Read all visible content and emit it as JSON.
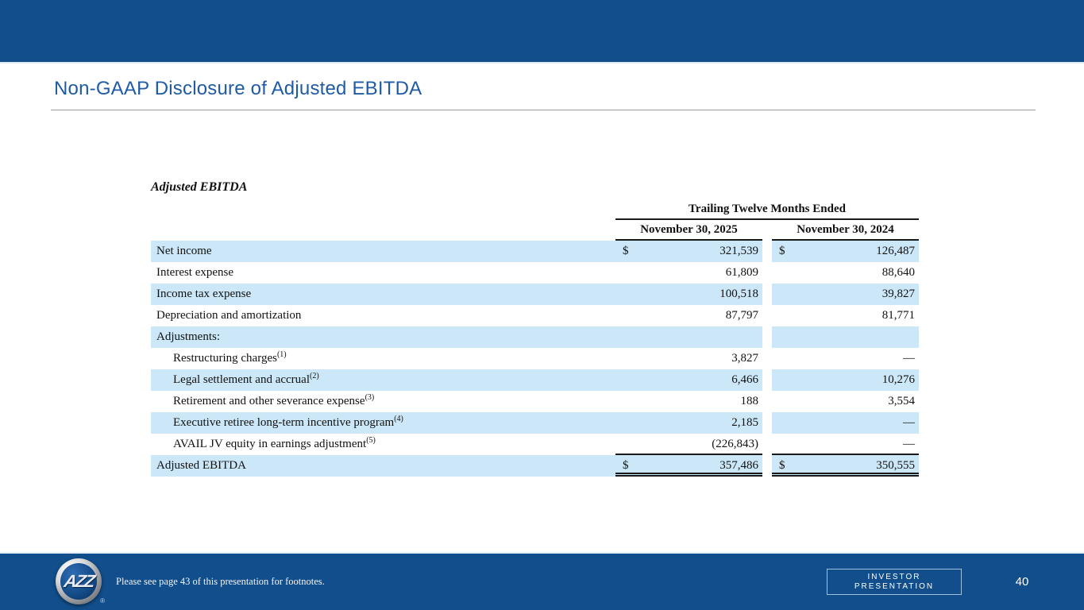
{
  "slide": {
    "title": "Non-GAAP Disclosure of Adjusted EBITDA",
    "page_number": "40",
    "footer_note": "Please see page 43 of this presentation for footnotes.",
    "footer_badge_line1": "INVESTOR",
    "footer_badge_line2": "PRESENTATION",
    "logo_text": "AZZ",
    "logo_registered_mark": "®"
  },
  "colors": {
    "bar_blue": "#114E8B",
    "row_highlight": "#CCE8F8",
    "title_blue": "#1F5BA5"
  },
  "chart_data": {
    "type": "table",
    "heading": "Adjusted EBITDA",
    "group_header": "Trailing Twelve Months Ended",
    "currency_symbol": "$",
    "columns": [
      "November 30, 2025",
      "November 30, 2024"
    ],
    "rows": [
      {
        "label": "Net income",
        "sup": "",
        "indent": false,
        "shaded": true,
        "dollar": true,
        "v1": "321,539",
        "v2": "126,487",
        "rule": ""
      },
      {
        "label": "Interest expense",
        "sup": "",
        "indent": false,
        "shaded": false,
        "dollar": false,
        "v1": "61,809",
        "v2": "88,640",
        "rule": ""
      },
      {
        "label": "Income tax expense",
        "sup": "",
        "indent": false,
        "shaded": true,
        "dollar": false,
        "v1": "100,518",
        "v2": "39,827",
        "rule": ""
      },
      {
        "label": "Depreciation and amortization",
        "sup": "",
        "indent": false,
        "shaded": false,
        "dollar": false,
        "v1": "87,797",
        "v2": "81,771",
        "rule": ""
      },
      {
        "label": "Adjustments:",
        "sup": "",
        "indent": false,
        "shaded": true,
        "dollar": false,
        "v1": "",
        "v2": "",
        "rule": ""
      },
      {
        "label": "Restructuring charges",
        "sup": "(1)",
        "indent": true,
        "shaded": false,
        "dollar": false,
        "v1": "3,827",
        "v2": "—",
        "rule": ""
      },
      {
        "label": "Legal settlement and accrual",
        "sup": "(2)",
        "indent": true,
        "shaded": true,
        "dollar": false,
        "v1": "6,466",
        "v2": "10,276",
        "rule": ""
      },
      {
        "label": "Retirement and other severance expense",
        "sup": "(3)",
        "indent": true,
        "shaded": false,
        "dollar": false,
        "v1": "188",
        "v2": "3,554",
        "rule": ""
      },
      {
        "label": "Executive retiree long-term incentive program",
        "sup": "(4)",
        "indent": true,
        "shaded": true,
        "dollar": false,
        "v1": "2,185",
        "v2": "—",
        "rule": ""
      },
      {
        "label": "AVAIL JV equity in earnings adjustment",
        "sup": "(5)",
        "indent": true,
        "shaded": false,
        "dollar": false,
        "v1": "(226,843)",
        "v2": "—",
        "rule": "bottom-single"
      },
      {
        "label": "Adjusted EBITDA",
        "sup": "",
        "indent": false,
        "shaded": true,
        "dollar": true,
        "v1": "357,486",
        "v2": "350,555",
        "rule": "bottom-double"
      }
    ]
  }
}
